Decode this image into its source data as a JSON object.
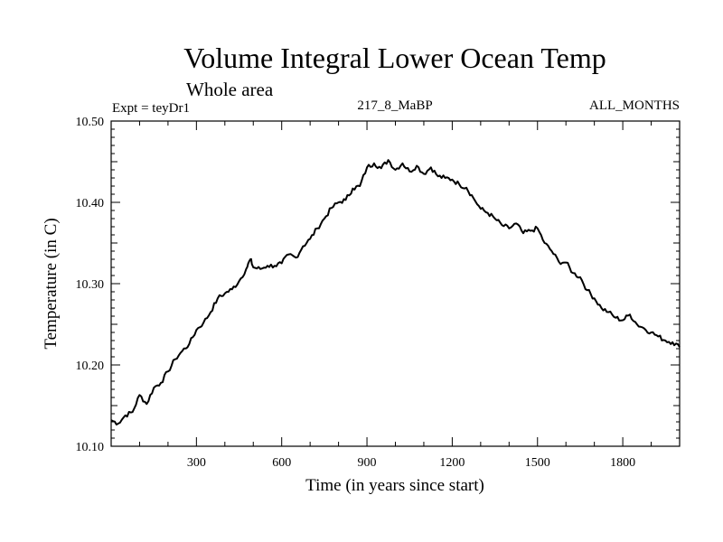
{
  "chart_data": {
    "type": "line",
    "title": "Volume Integral Lower Ocean Temp",
    "subtitle": "Whole area",
    "expt_label": "Expt = teyDr1",
    "run_label": "217_8_MaBP",
    "period_label": "ALL_MONTHS",
    "xlabel": "Time (in years since start)",
    "ylabel": "Temperature (in C)",
    "xlim": [
      0,
      2000
    ],
    "ylim": [
      10.1,
      10.5
    ],
    "x_ticks": [
      300,
      600,
      900,
      1200,
      1500,
      1800
    ],
    "x_tick_labels": [
      "300",
      "600",
      "900",
      "1200",
      "1500",
      "1800"
    ],
    "y_ticks": [
      10.1,
      10.2,
      10.3,
      10.4,
      10.5
    ],
    "y_tick_labels": [
      "10.10",
      "10.20",
      "10.30",
      "10.40",
      "10.50"
    ],
    "grid": false,
    "series": [
      {
        "name": "teyDr1",
        "color": "#000000",
        "x": [
          0,
          25,
          50,
          75,
          100,
          125,
          150,
          175,
          200,
          225,
          250,
          275,
          300,
          325,
          350,
          375,
          400,
          425,
          450,
          475,
          490,
          500,
          525,
          550,
          575,
          600,
          625,
          650,
          675,
          700,
          725,
          750,
          775,
          800,
          825,
          850,
          875,
          900,
          925,
          950,
          975,
          1000,
          1025,
          1050,
          1075,
          1100,
          1125,
          1150,
          1175,
          1200,
          1225,
          1250,
          1275,
          1300,
          1325,
          1350,
          1375,
          1400,
          1425,
          1450,
          1475,
          1500,
          1525,
          1550,
          1575,
          1600,
          1625,
          1650,
          1675,
          1700,
          1725,
          1750,
          1775,
          1800,
          1825,
          1850,
          1875,
          1900,
          1925,
          1950,
          1975,
          2000
        ],
        "values": [
          10.132,
          10.128,
          10.138,
          10.142,
          10.163,
          10.152,
          10.172,
          10.178,
          10.192,
          10.207,
          10.217,
          10.226,
          10.243,
          10.252,
          10.265,
          10.282,
          10.288,
          10.293,
          10.303,
          10.318,
          10.33,
          10.32,
          10.318,
          10.322,
          10.322,
          10.325,
          10.336,
          10.332,
          10.346,
          10.355,
          10.368,
          10.38,
          10.393,
          10.4,
          10.403,
          10.417,
          10.42,
          10.443,
          10.448,
          10.442,
          10.452,
          10.44,
          10.448,
          10.438,
          10.445,
          10.435,
          10.443,
          10.432,
          10.43,
          10.428,
          10.422,
          10.418,
          10.405,
          10.392,
          10.387,
          10.38,
          10.372,
          10.368,
          10.374,
          10.362,
          10.365,
          10.368,
          10.35,
          10.34,
          10.327,
          10.326,
          10.313,
          10.308,
          10.292,
          10.282,
          10.27,
          10.265,
          10.258,
          10.255,
          10.262,
          10.25,
          10.245,
          10.24,
          10.235,
          10.23,
          10.228,
          10.222
        ]
      }
    ]
  }
}
